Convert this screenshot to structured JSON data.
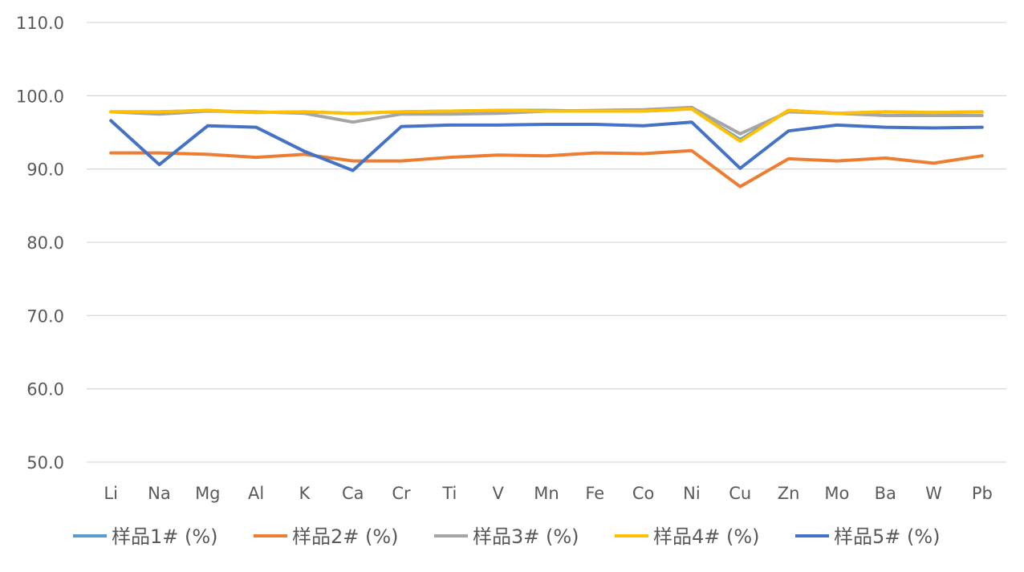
{
  "chart_data": {
    "type": "line",
    "title": "",
    "xlabel": "",
    "ylabel": "",
    "ylim": [
      50,
      110
    ],
    "yticks": [
      "50.0",
      "60.0",
      "70.0",
      "80.0",
      "90.0",
      "100.0",
      "110.0"
    ],
    "grid": "horizontal",
    "legend_position": "bottom",
    "categories": [
      "Li",
      "Na",
      "Mg",
      "Al",
      "K",
      "Ca",
      "Cr",
      "Ti",
      "V",
      "Mn",
      "Fe",
      "Co",
      "Ni",
      "Cu",
      "Zn",
      "Mo",
      "Ba",
      "W",
      "Pb"
    ],
    "series": [
      {
        "name": "样品1# (%)",
        "color": "#5B9BD5",
        "values": [
          97.8,
          97.8,
          98.0,
          97.7,
          97.8,
          97.6,
          97.8,
          97.9,
          98.0,
          98.0,
          97.9,
          97.9,
          98.2,
          94.0,
          98.0,
          97.6,
          97.8,
          97.7,
          97.8
        ]
      },
      {
        "name": "样品2# (%)",
        "color": "#ED7D31",
        "values": [
          92.2,
          92.2,
          92.0,
          91.6,
          92.0,
          91.1,
          91.1,
          91.6,
          91.9,
          91.8,
          92.2,
          92.1,
          92.5,
          87.6,
          91.4,
          91.1,
          91.5,
          90.8,
          91.8
        ]
      },
      {
        "name": "样品3# (%)",
        "color": "#A5A5A5",
        "values": [
          97.8,
          97.5,
          97.9,
          97.8,
          97.6,
          96.4,
          97.5,
          97.5,
          97.6,
          97.9,
          98.0,
          98.1,
          98.4,
          94.8,
          97.8,
          97.6,
          97.3,
          97.3,
          97.3
        ]
      },
      {
        "name": "样品4# (%)",
        "color": "#FFC000",
        "values": [
          97.8,
          97.8,
          98.0,
          97.7,
          97.8,
          97.6,
          97.8,
          97.9,
          98.0,
          97.9,
          97.9,
          97.9,
          98.2,
          93.8,
          98.0,
          97.6,
          97.8,
          97.7,
          97.8
        ]
      },
      {
        "name": "样品5# (%)",
        "color": "#4472C4",
        "values": [
          96.6,
          90.6,
          95.9,
          95.7,
          92.4,
          89.8,
          95.8,
          96.0,
          96.0,
          96.1,
          96.1,
          95.9,
          96.4,
          90.1,
          95.2,
          96.0,
          95.7,
          95.6,
          95.7
        ]
      }
    ]
  }
}
